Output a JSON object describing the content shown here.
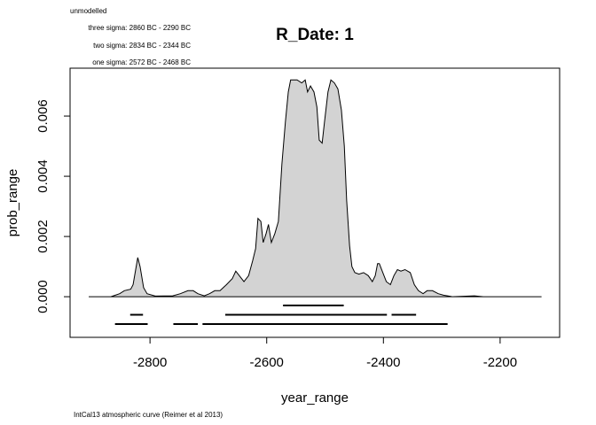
{
  "chart_data": {
    "type": "area",
    "title": "R_Date: 1",
    "notes": [
      "unmodelled",
      "three sigma: 2860 BC - 2290 BC",
      "two sigma: 2834 BC - 2344 BC",
      "one sigma: 2572 BC - 2468 BC"
    ],
    "footer": "IntCal13 atmospheric curve (Reimer et al 2013)",
    "x_label": "year_range",
    "y_label": "prob_range",
    "color": "#d3d3d3",
    "xlim": [
      -2937,
      -2098
    ],
    "ylim": [
      -0.00135,
      0.00759
    ],
    "xticks": [
      -2800,
      -2600,
      -2400,
      -2200
    ],
    "yticks": [
      {
        "value": 0,
        "label": "0.000"
      },
      0.002,
      0.004,
      0.006
    ],
    "x": [
      -2905,
      -2867,
      -2852,
      -2844,
      -2833,
      -2829,
      -2821,
      -2817,
      -2811,
      -2805,
      -2791,
      -2761,
      -2748,
      -2735,
      -2726,
      -2718,
      -2707,
      -2698,
      -2689,
      -2680,
      -2669,
      -2659,
      -2653,
      -2647,
      -2639,
      -2631,
      -2624,
      -2619,
      -2615,
      -2610,
      -2606,
      -2601,
      -2597,
      -2592,
      -2586,
      -2580,
      -2574,
      -2568,
      -2563,
      -2559,
      -2548,
      -2540,
      -2534,
      -2530,
      -2525,
      -2519,
      -2514,
      -2510,
      -2505,
      -2501,
      -2495,
      -2490,
      -2484,
      -2478,
      -2472,
      -2467,
      -2463,
      -2458,
      -2454,
      -2449,
      -2442,
      -2434,
      -2426,
      -2419,
      -2414,
      -2410,
      -2407,
      -2401,
      -2395,
      -2388,
      -2382,
      -2376,
      -2370,
      -2363,
      -2354,
      -2347,
      -2340,
      -2332,
      -2325,
      -2316,
      -2306,
      -2297,
      -2282,
      -2244,
      -2229,
      -2129
    ],
    "values": [
      0,
      0,
      0.0001,
      0.0002,
      0.00025,
      0.0004,
      0.0013,
      0.001,
      0.0003,
      0.0001,
      2e-05,
      3e-05,
      0.0001,
      0.0002,
      0.0002,
      0.0001,
      3e-05,
      0.0001,
      0.0002,
      0.0002,
      0.0004,
      0.0006,
      0.00085,
      0.0007,
      0.0005,
      0.0007,
      0.0012,
      0.0016,
      0.0026,
      0.0025,
      0.0018,
      0.0021,
      0.0024,
      0.0018,
      0.0021,
      0.0025,
      0.0044,
      0.0058,
      0.0068,
      0.0072,
      0.0072,
      0.0071,
      0.0072,
      0.0068,
      0.007,
      0.0068,
      0.0063,
      0.0052,
      0.0051,
      0.0058,
      0.0068,
      0.0072,
      0.0071,
      0.0069,
      0.0062,
      0.005,
      0.0032,
      0.0017,
      0.001,
      0.0008,
      0.00075,
      0.0008,
      0.0007,
      0.0005,
      0.0007,
      0.0011,
      0.0011,
      0.0008,
      0.0005,
      0.0004,
      0.0007,
      0.0009,
      0.00085,
      0.0009,
      0.0008,
      0.0004,
      0.0002,
      0.0001,
      0.0002,
      0.0002,
      0.0001,
      5e-05,
      0,
      3e-05,
      0,
      0
    ],
    "ranges": [
      [
        [
          -2572,
          -2468
        ]
      ],
      [
        [
          -2834,
          -2812
        ],
        [
          -2671,
          -2394
        ],
        [
          -2386,
          -2344
        ]
      ],
      [
        [
          -2860,
          -2804
        ],
        [
          -2760,
          -2718
        ],
        [
          -2710,
          -2290
        ]
      ]
    ]
  }
}
